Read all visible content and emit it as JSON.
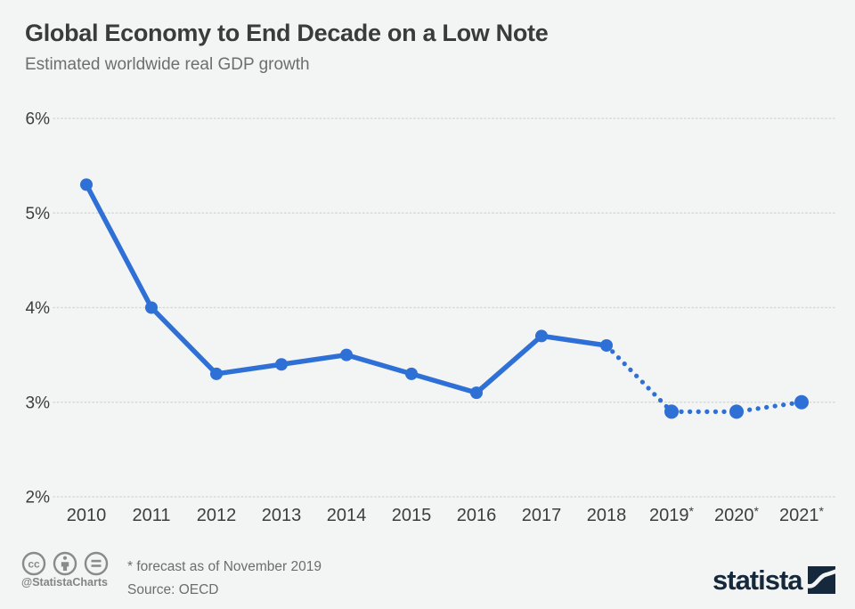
{
  "header": {
    "title": "Global Economy to End Decade on a Low Note",
    "subtitle": "Estimated worldwide real GDP growth"
  },
  "chart_data": {
    "type": "line",
    "title": "Estimated worldwide real GDP growth",
    "categories": [
      "2010",
      "2011",
      "2012",
      "2013",
      "2014",
      "2015",
      "2016",
      "2017",
      "2018",
      "2019*",
      "2020*",
      "2021*"
    ],
    "values": [
      5.3,
      4.0,
      3.3,
      3.4,
      3.5,
      3.3,
      3.1,
      3.7,
      3.6,
      2.9,
      2.9,
      3.0
    ],
    "unit": "%",
    "ylim": [
      2,
      6
    ],
    "ytick_values": [
      6,
      5,
      4,
      3,
      2
    ],
    "ytick_labels": [
      "6%",
      "5%",
      "4%",
      "3%",
      "2%"
    ],
    "solid_through_index": 8,
    "forecast_start_index": 9,
    "grid": true,
    "legend": "none",
    "line_color": "#2e70d5"
  },
  "footer": {
    "handle": "@StatistaCharts",
    "footnote": "* forecast as of November 2019",
    "source": "Source: OECD",
    "brand": "statista",
    "license_icons": [
      "cc-icon",
      "attribution-icon",
      "no-derivatives-icon"
    ]
  },
  "colors": {
    "background": "#f3f4f4",
    "line": "#2e70d5",
    "grid": "#d7d8d8",
    "axis_text": "#3d3d3d",
    "title_text": "#3b3b3b",
    "subtitle_text": "#6e6e6e",
    "footer_text": "#6d6d6d",
    "cc_gray": "#8a8a8a",
    "brand_navy": "#16293c"
  }
}
